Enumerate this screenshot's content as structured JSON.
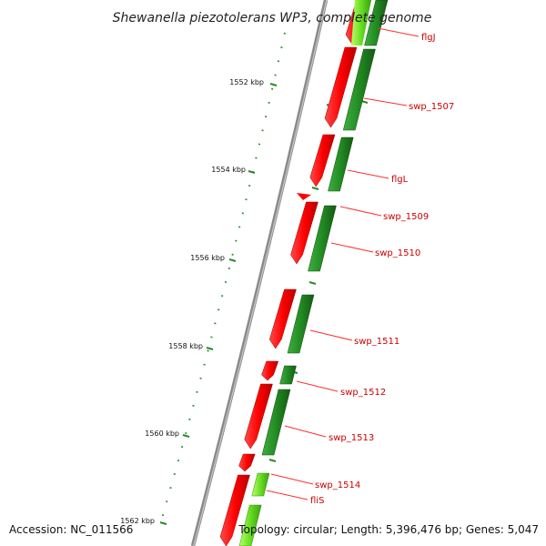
{
  "title": "Shewanella piezotolerans WP3, complete genome",
  "footer": {
    "accession": "Accession: NC_011566",
    "topology": "Topology: circular; Length: 5,396,476 bp; Genes: 5,047"
  },
  "scale_labels": [
    "1552 kbp",
    "1554 kbp",
    "1556 kbp",
    "1558 kbp",
    "1560 kbp",
    "1562 kbp"
  ],
  "gene_labels": [
    "flgJ",
    "swp_1507",
    "flgL",
    "swp_1509",
    "swp_1510",
    "swp_1511",
    "swp_1512",
    "swp_1513",
    "swp_1514",
    "fliS"
  ],
  "colors": {
    "cds_red": "#ff0000",
    "cds_green": "#228b22",
    "cds_lightgreen": "#66dd22",
    "backbone": "#8a8a8a",
    "ticks": "#2a8a2a",
    "label": "#cc0000"
  }
}
